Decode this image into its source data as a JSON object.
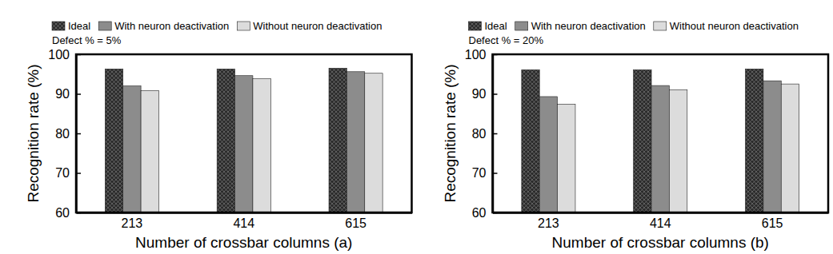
{
  "chart_data": [
    {
      "type": "bar",
      "annotation": "Defect % = 5%",
      "x_label": "Number of crossbar columns (a)",
      "y_label": "Recognition rate (%)",
      "categories": [
        "213",
        "414",
        "615"
      ],
      "series": [
        {
          "name": "Ideal",
          "color": "#2b2b2b",
          "values": [
            96.3,
            96.3,
            96.5
          ]
        },
        {
          "name": "With neuron deactivation",
          "color": "#8c8c8c",
          "values": [
            92.0,
            94.6,
            95.6
          ]
        },
        {
          "name": "Without neuron deactivation",
          "color": "#dcdcdc",
          "values": [
            90.8,
            93.8,
            95.2
          ]
        }
      ],
      "ylim": [
        60,
        100
      ],
      "yticks": [
        60,
        70,
        80,
        90,
        100
      ],
      "grid": false,
      "legend": "top"
    },
    {
      "type": "bar",
      "annotation": "Defect % = 20%",
      "x_label": "Number of crossbar columns (b)",
      "y_label": "Recognition rate (%)",
      "categories": [
        "213",
        "414",
        "615"
      ],
      "series": [
        {
          "name": "Ideal",
          "color": "#2b2b2b",
          "values": [
            96.1,
            96.1,
            96.3
          ]
        },
        {
          "name": "With neuron deactivation",
          "color": "#8c8c8c",
          "values": [
            89.3,
            92.1,
            93.3
          ]
        },
        {
          "name": "Without neuron deactivation",
          "color": "#dcdcdc",
          "values": [
            87.4,
            91.0,
            92.5
          ]
        }
      ],
      "ylim": [
        60,
        100
      ],
      "yticks": [
        60,
        70,
        80,
        90,
        100
      ],
      "grid": false,
      "legend": "top"
    }
  ]
}
